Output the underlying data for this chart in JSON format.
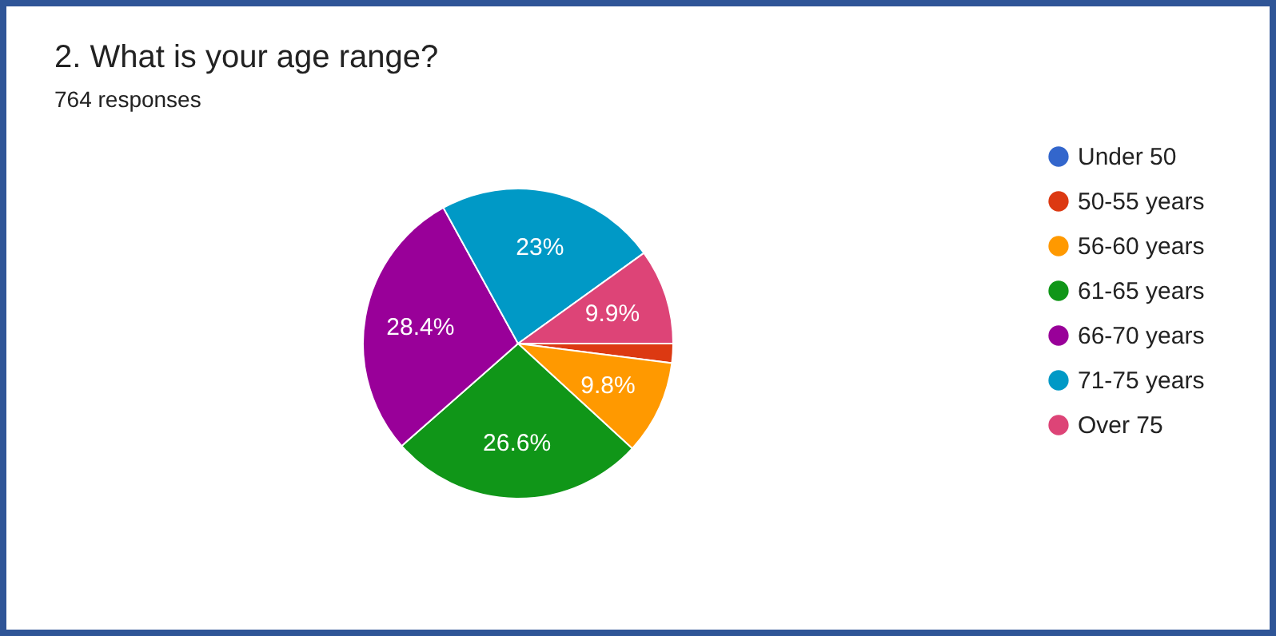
{
  "chart_data": {
    "type": "pie",
    "title": "2.  What is your age range?",
    "subtitle": "764 responses",
    "categories": [
      "Under 50",
      "50-55 years",
      "56-60 years",
      "61-65 years",
      "66-70 years",
      "71-75 years",
      "Over 75"
    ],
    "values": [
      null,
      2.0,
      9.8,
      26.6,
      28.4,
      23,
      9.9
    ],
    "colors": [
      "#3366cc",
      "#dc3912",
      "#ff9900",
      "#109618",
      "#990099",
      "#0099c6",
      "#dd4477"
    ],
    "value_labels": [
      null,
      null,
      "9.8%",
      "26.6%",
      "28.4%",
      "23%",
      "9.9%"
    ],
    "legend": "right"
  }
}
